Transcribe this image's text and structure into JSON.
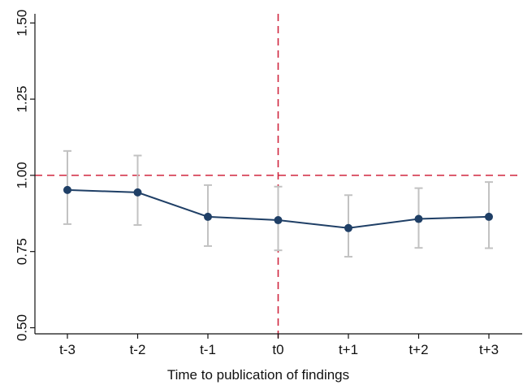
{
  "chart_data": {
    "type": "line",
    "title": "",
    "xlabel": "Time to publication of findings",
    "ylabel": "",
    "categories": [
      "t-3",
      "t-2",
      "t-1",
      "t0",
      "t+1",
      "t+2",
      "t+3"
    ],
    "series": [
      {
        "values": [
          0.952,
          0.944,
          0.864,
          0.853,
          0.827,
          0.857,
          0.864
        ],
        "ci_low": [
          0.84,
          0.837,
          0.768,
          0.754,
          0.733,
          0.762,
          0.761
        ],
        "ci_high": [
          1.08,
          1.065,
          0.968,
          0.963,
          0.935,
          0.958,
          0.978
        ]
      }
    ],
    "yticks": [
      0.5,
      0.75,
      1.0,
      1.25,
      1.5
    ],
    "ytick_labels": [
      "0.50",
      "0.75",
      "1.00",
      "1.25",
      "1.50"
    ],
    "ylim": [
      0.48,
      1.53
    ],
    "reference_lines": {
      "y": 1.0,
      "x_category": "t0"
    },
    "grid": false,
    "legend": "none",
    "colors": {
      "series": "#1f3f66",
      "ci": "#c2c2c2",
      "reference": "#d0263f",
      "axis": "#111111"
    }
  }
}
